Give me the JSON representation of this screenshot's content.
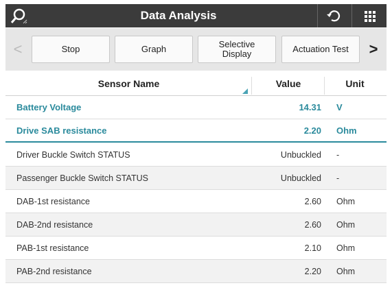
{
  "header": {
    "title": "Data Analysis"
  },
  "toolbar": {
    "prev": "<",
    "next": ">",
    "buttons": [
      "Stop",
      "Graph",
      "Selective Display",
      "Actuation Test"
    ]
  },
  "table": {
    "columns": [
      "Sensor Name",
      "Value",
      "Unit"
    ],
    "rows": [
      [
        "Battery Voltage",
        "14.31",
        "V"
      ],
      [
        "Drive SAB resistance",
        "2.20",
        "Ohm"
      ],
      [
        "Driver Buckle Switch STATUS",
        "Unbuckled",
        "-"
      ],
      [
        "Passenger Buckle Switch STATUS",
        "Unbuckled",
        "-"
      ],
      [
        "DAB-1st resistance",
        "2.60",
        "Ohm"
      ],
      [
        "DAB-2nd resistance",
        "2.60",
        "Ohm"
      ],
      [
        "PAB-1st resistance",
        "2.10",
        "Ohm"
      ],
      [
        "PAB-2nd resistance",
        "2.20",
        "Ohm"
      ]
    ]
  }
}
